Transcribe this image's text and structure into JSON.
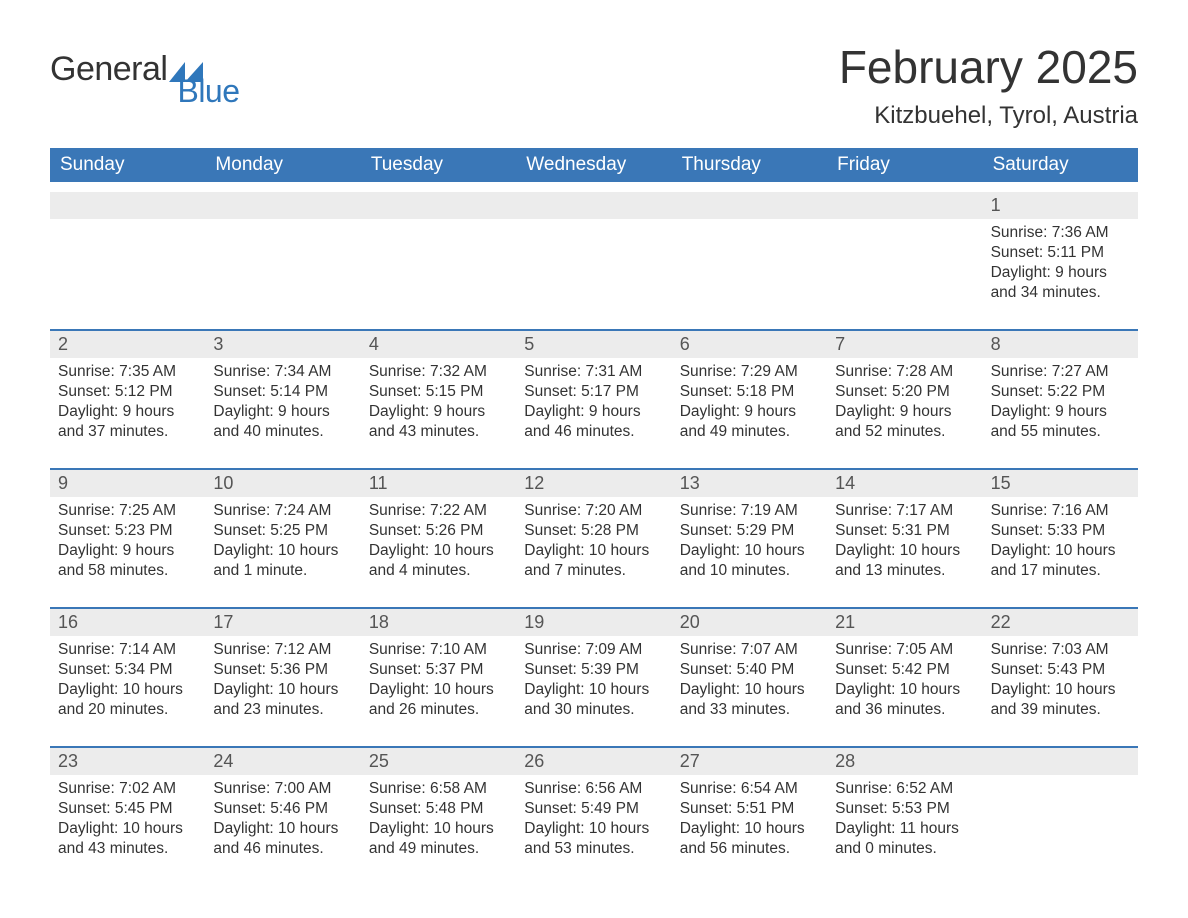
{
  "logo": {
    "text_general": "General",
    "text_blue": "Blue",
    "accent_color": "#2f77bb"
  },
  "title": {
    "month": "February 2025",
    "location": "Kitzbuehel, Tyrol, Austria"
  },
  "styling": {
    "header_bg": "#3a77b7",
    "header_text": "#ffffff",
    "daynum_bg": "#ececec",
    "divider_color": "#3a77b7",
    "body_text": "#333333",
    "daynum_text": "#555555",
    "background": "#ffffff",
    "font_family": "Segoe UI, Arial, sans-serif",
    "title_fontsize_pt": 34,
    "location_fontsize_pt": 18,
    "header_fontsize_pt": 14,
    "daynum_fontsize_pt": 13,
    "detail_fontsize_pt": 11
  },
  "day_headers": [
    "Sunday",
    "Monday",
    "Tuesday",
    "Wednesday",
    "Thursday",
    "Friday",
    "Saturday"
  ],
  "weeks": [
    [
      null,
      null,
      null,
      null,
      null,
      null,
      {
        "n": "1",
        "sunrise": "7:36 AM",
        "sunset": "5:11 PM",
        "daylight": "9 hours and 34 minutes."
      }
    ],
    [
      {
        "n": "2",
        "sunrise": "7:35 AM",
        "sunset": "5:12 PM",
        "daylight": "9 hours and 37 minutes."
      },
      {
        "n": "3",
        "sunrise": "7:34 AM",
        "sunset": "5:14 PM",
        "daylight": "9 hours and 40 minutes."
      },
      {
        "n": "4",
        "sunrise": "7:32 AM",
        "sunset": "5:15 PM",
        "daylight": "9 hours and 43 minutes."
      },
      {
        "n": "5",
        "sunrise": "7:31 AM",
        "sunset": "5:17 PM",
        "daylight": "9 hours and 46 minutes."
      },
      {
        "n": "6",
        "sunrise": "7:29 AM",
        "sunset": "5:18 PM",
        "daylight": "9 hours and 49 minutes."
      },
      {
        "n": "7",
        "sunrise": "7:28 AM",
        "sunset": "5:20 PM",
        "daylight": "9 hours and 52 minutes."
      },
      {
        "n": "8",
        "sunrise": "7:27 AM",
        "sunset": "5:22 PM",
        "daylight": "9 hours and 55 minutes."
      }
    ],
    [
      {
        "n": "9",
        "sunrise": "7:25 AM",
        "sunset": "5:23 PM",
        "daylight": "9 hours and 58 minutes."
      },
      {
        "n": "10",
        "sunrise": "7:24 AM",
        "sunset": "5:25 PM",
        "daylight": "10 hours and 1 minute."
      },
      {
        "n": "11",
        "sunrise": "7:22 AM",
        "sunset": "5:26 PM",
        "daylight": "10 hours and 4 minutes."
      },
      {
        "n": "12",
        "sunrise": "7:20 AM",
        "sunset": "5:28 PM",
        "daylight": "10 hours and 7 minutes."
      },
      {
        "n": "13",
        "sunrise": "7:19 AM",
        "sunset": "5:29 PM",
        "daylight": "10 hours and 10 minutes."
      },
      {
        "n": "14",
        "sunrise": "7:17 AM",
        "sunset": "5:31 PM",
        "daylight": "10 hours and 13 minutes."
      },
      {
        "n": "15",
        "sunrise": "7:16 AM",
        "sunset": "5:33 PM",
        "daylight": "10 hours and 17 minutes."
      }
    ],
    [
      {
        "n": "16",
        "sunrise": "7:14 AM",
        "sunset": "5:34 PM",
        "daylight": "10 hours and 20 minutes."
      },
      {
        "n": "17",
        "sunrise": "7:12 AM",
        "sunset": "5:36 PM",
        "daylight": "10 hours and 23 minutes."
      },
      {
        "n": "18",
        "sunrise": "7:10 AM",
        "sunset": "5:37 PM",
        "daylight": "10 hours and 26 minutes."
      },
      {
        "n": "19",
        "sunrise": "7:09 AM",
        "sunset": "5:39 PM",
        "daylight": "10 hours and 30 minutes."
      },
      {
        "n": "20",
        "sunrise": "7:07 AM",
        "sunset": "5:40 PM",
        "daylight": "10 hours and 33 minutes."
      },
      {
        "n": "21",
        "sunrise": "7:05 AM",
        "sunset": "5:42 PM",
        "daylight": "10 hours and 36 minutes."
      },
      {
        "n": "22",
        "sunrise": "7:03 AM",
        "sunset": "5:43 PM",
        "daylight": "10 hours and 39 minutes."
      }
    ],
    [
      {
        "n": "23",
        "sunrise": "7:02 AM",
        "sunset": "5:45 PM",
        "daylight": "10 hours and 43 minutes."
      },
      {
        "n": "24",
        "sunrise": "7:00 AM",
        "sunset": "5:46 PM",
        "daylight": "10 hours and 46 minutes."
      },
      {
        "n": "25",
        "sunrise": "6:58 AM",
        "sunset": "5:48 PM",
        "daylight": "10 hours and 49 minutes."
      },
      {
        "n": "26",
        "sunrise": "6:56 AM",
        "sunset": "5:49 PM",
        "daylight": "10 hours and 53 minutes."
      },
      {
        "n": "27",
        "sunrise": "6:54 AM",
        "sunset": "5:51 PM",
        "daylight": "10 hours and 56 minutes."
      },
      {
        "n": "28",
        "sunrise": "6:52 AM",
        "sunset": "5:53 PM",
        "daylight": "11 hours and 0 minutes."
      },
      null
    ]
  ],
  "labels": {
    "sunrise": "Sunrise:",
    "sunset": "Sunset:",
    "daylight": "Daylight:"
  }
}
